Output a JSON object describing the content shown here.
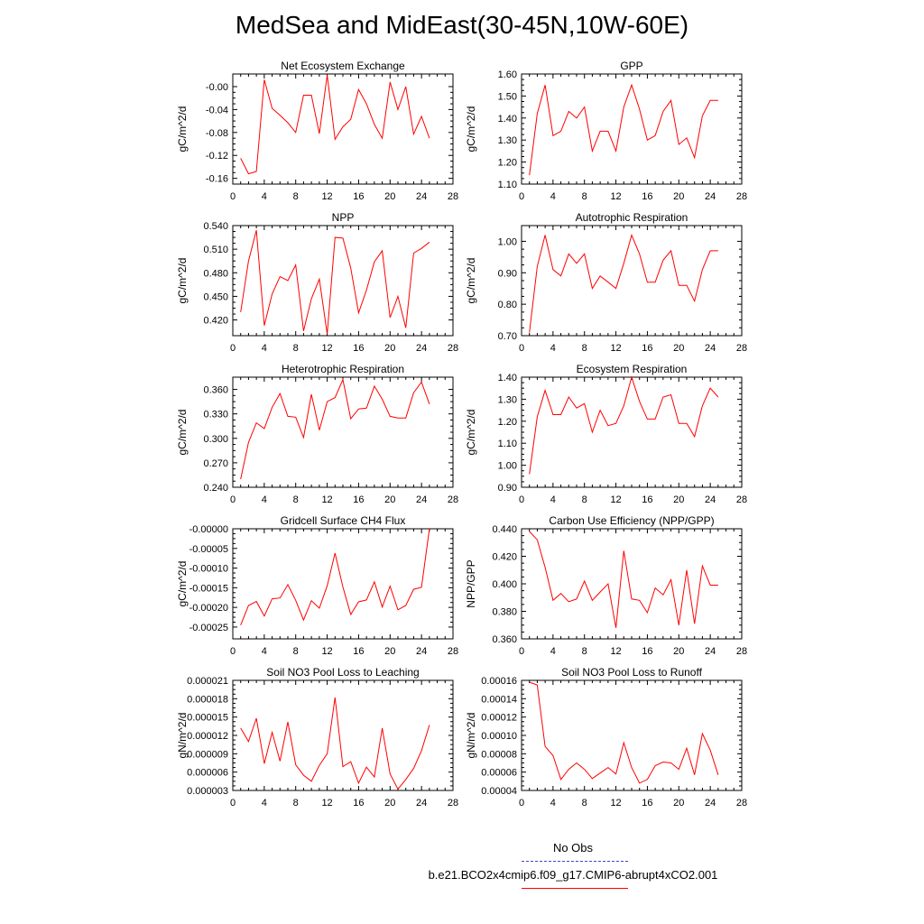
{
  "title": "MedSea and MidEast(30-45N,10W-60E)",
  "legend": {
    "obs_label": "No Obs",
    "case_label": "b.e21.BCO2x4cmip6.f09_g17.CMIP6-abrupt4xCO2.001",
    "obs_color": "#4444cc",
    "case_color": "#ff0000"
  },
  "chart_data": [
    {
      "type": "line",
      "title": "Net Ecosystem Exchange",
      "ylabel": "gC/m^2/d",
      "xlim": [
        0,
        28
      ],
      "xticks": [
        "0",
        "4",
        "8",
        "12",
        "16",
        "20",
        "24",
        "28"
      ],
      "ylim": [
        -0.17,
        0.022
      ],
      "yticks": [
        -0.16,
        -0.12,
        -0.08,
        -0.04,
        0.0
      ],
      "ytick_labels": [
        "-0.16",
        "-0.12",
        "-0.08",
        "-0.04",
        "-0.00"
      ],
      "x": [
        1,
        2,
        3,
        4,
        5,
        6,
        7,
        8,
        9,
        10,
        11,
        12,
        13,
        14,
        15,
        16,
        17,
        18,
        19,
        20,
        21,
        22,
        23,
        24,
        25
      ],
      "values": [
        -0.125,
        -0.152,
        -0.148,
        0.012,
        -0.038,
        -0.05,
        -0.063,
        -0.08,
        -0.015,
        -0.015,
        -0.082,
        0.02,
        -0.092,
        -0.07,
        -0.057,
        -0.005,
        -0.03,
        -0.066,
        -0.09,
        0.008,
        -0.04,
        0.0,
        -0.083,
        -0.052,
        -0.09
      ],
      "color": "#ff0000"
    },
    {
      "type": "line",
      "title": "GPP",
      "ylabel": "gC/m^2/d",
      "xlim": [
        0,
        28
      ],
      "xticks": [
        "0",
        "4",
        "8",
        "12",
        "16",
        "20",
        "24",
        "28"
      ],
      "ylim": [
        1.1,
        1.6
      ],
      "yticks": [
        1.1,
        1.2,
        1.3,
        1.4,
        1.5,
        1.6
      ],
      "ytick_labels": [
        "1.10",
        "1.20",
        "1.30",
        "1.40",
        "1.50",
        "1.60"
      ],
      "x": [
        1,
        2,
        3,
        4,
        5,
        6,
        7,
        8,
        9,
        10,
        11,
        12,
        13,
        14,
        15,
        16,
        17,
        18,
        19,
        20,
        21,
        22,
        23,
        24,
        25
      ],
      "values": [
        1.14,
        1.42,
        1.55,
        1.32,
        1.34,
        1.43,
        1.4,
        1.45,
        1.25,
        1.34,
        1.34,
        1.25,
        1.45,
        1.55,
        1.44,
        1.3,
        1.32,
        1.43,
        1.48,
        1.28,
        1.31,
        1.22,
        1.41,
        1.48,
        1.48
      ],
      "color": "#ff0000"
    },
    {
      "type": "line",
      "title": "NPP",
      "ylabel": "gC/m^2/d",
      "xlim": [
        0,
        28
      ],
      "xticks": [
        "0",
        "4",
        "8",
        "12",
        "16",
        "20",
        "24",
        "28"
      ],
      "ylim": [
        0.4,
        0.54
      ],
      "yticks": [
        0.42,
        0.45,
        0.48,
        0.51,
        0.54
      ],
      "ytick_labels": [
        "0.420",
        "0.450",
        "0.480",
        "0.510",
        "0.540"
      ],
      "x": [
        1,
        2,
        3,
        4,
        5,
        6,
        7,
        8,
        9,
        10,
        11,
        12,
        13,
        14,
        15,
        16,
        17,
        18,
        19,
        20,
        21,
        22,
        23,
        24,
        25
      ],
      "values": [
        0.43,
        0.495,
        0.534,
        0.413,
        0.453,
        0.475,
        0.47,
        0.49,
        0.406,
        0.447,
        0.472,
        0.402,
        0.525,
        0.524,
        0.486,
        0.429,
        0.458,
        0.494,
        0.508,
        0.423,
        0.45,
        0.41,
        0.505,
        0.511,
        0.519
      ],
      "color": "#ff0000"
    },
    {
      "type": "line",
      "title": "Autotrophic Respiration",
      "ylabel": "gC/m^2/d",
      "xlim": [
        0,
        28
      ],
      "xticks": [
        "0",
        "4",
        "8",
        "12",
        "16",
        "20",
        "24",
        "28"
      ],
      "ylim": [
        0.7,
        1.05
      ],
      "yticks": [
        0.7,
        0.8,
        0.9,
        1.0
      ],
      "ytick_labels": [
        "0.70",
        "0.80",
        "0.90",
        "1.00"
      ],
      "x": [
        1,
        2,
        3,
        4,
        5,
        6,
        7,
        8,
        9,
        10,
        11,
        12,
        13,
        14,
        15,
        16,
        17,
        18,
        19,
        20,
        21,
        22,
        23,
        24,
        25
      ],
      "values": [
        0.71,
        0.92,
        1.02,
        0.91,
        0.89,
        0.96,
        0.93,
        0.96,
        0.85,
        0.89,
        0.87,
        0.85,
        0.93,
        1.02,
        0.96,
        0.87,
        0.87,
        0.94,
        0.97,
        0.86,
        0.86,
        0.81,
        0.91,
        0.97,
        0.97
      ],
      "color": "#ff0000"
    },
    {
      "type": "line",
      "title": "Heterotrophic Respiration",
      "ylabel": "gC/m^2/d",
      "xlim": [
        0,
        28
      ],
      "xticks": [
        "0",
        "4",
        "8",
        "12",
        "16",
        "20",
        "24",
        "28"
      ],
      "ylim": [
        0.24,
        0.375
      ],
      "yticks": [
        0.24,
        0.27,
        0.3,
        0.33,
        0.36
      ],
      "ytick_labels": [
        "0.240",
        "0.270",
        "0.300",
        "0.330",
        "0.360"
      ],
      "x": [
        1,
        2,
        3,
        4,
        5,
        6,
        7,
        8,
        9,
        10,
        11,
        12,
        13,
        14,
        15,
        16,
        17,
        18,
        19,
        20,
        21,
        22,
        23,
        24,
        25
      ],
      "values": [
        0.25,
        0.295,
        0.319,
        0.312,
        0.338,
        0.355,
        0.327,
        0.326,
        0.301,
        0.354,
        0.31,
        0.345,
        0.35,
        0.372,
        0.324,
        0.336,
        0.337,
        0.364,
        0.348,
        0.327,
        0.325,
        0.325,
        0.356,
        0.369,
        0.342
      ],
      "color": "#ff0000"
    },
    {
      "type": "line",
      "title": "Ecosystem Respiration",
      "ylabel": "gC/m^2/d",
      "xlim": [
        0,
        28
      ],
      "xticks": [
        "0",
        "4",
        "8",
        "12",
        "16",
        "20",
        "24",
        "28"
      ],
      "ylim": [
        0.9,
        1.4
      ],
      "yticks": [
        0.9,
        1.0,
        1.1,
        1.2,
        1.3,
        1.4
      ],
      "ytick_labels": [
        "0.90",
        "1.00",
        "1.10",
        "1.20",
        "1.30",
        "1.40"
      ],
      "x": [
        1,
        2,
        3,
        4,
        5,
        6,
        7,
        8,
        9,
        10,
        11,
        12,
        13,
        14,
        15,
        16,
        17,
        18,
        19,
        20,
        21,
        22,
        23,
        24,
        25
      ],
      "values": [
        0.96,
        1.22,
        1.34,
        1.23,
        1.23,
        1.31,
        1.26,
        1.28,
        1.15,
        1.25,
        1.18,
        1.19,
        1.27,
        1.4,
        1.29,
        1.21,
        1.21,
        1.31,
        1.32,
        1.19,
        1.19,
        1.13,
        1.27,
        1.35,
        1.31
      ],
      "color": "#ff0000"
    },
    {
      "type": "line",
      "title": "Gridcell Surface CH4 Flux",
      "ylabel": "gC/m^2/d",
      "xlim": [
        0,
        28
      ],
      "xticks": [
        "0",
        "4",
        "8",
        "12",
        "16",
        "20",
        "24",
        "28"
      ],
      "ylim": [
        -0.00028,
        0.0
      ],
      "yticks": [
        -0.00025,
        -0.0002,
        -0.00015,
        -0.0001,
        -5e-05,
        0.0
      ],
      "ytick_labels": [
        "-0.00025",
        "-0.00020",
        "-0.00015",
        "-0.00010",
        "-0.00005",
        "-0.00000"
      ],
      "x": [
        1,
        2,
        3,
        4,
        5,
        6,
        7,
        8,
        9,
        10,
        11,
        12,
        13,
        14,
        15,
        16,
        17,
        18,
        19,
        20,
        21,
        22,
        23,
        24,
        25
      ],
      "values": [
        -0.000245,
        -0.000195,
        -0.000185,
        -0.000222,
        -0.000178,
        -0.000176,
        -0.000142,
        -0.000182,
        -0.000232,
        -0.000183,
        -0.000202,
        -0.000145,
        -6.2e-05,
        -0.000148,
        -0.000218,
        -0.000186,
        -0.000181,
        -0.000135,
        -0.000199,
        -0.000146,
        -0.000206,
        -0.000195,
        -0.000154,
        -0.000149,
        0.0
      ],
      "color": "#ff0000"
    },
    {
      "type": "line",
      "title": "Carbon Use Efficiency (NPP/GPP)",
      "ylabel": "NPP/GPP",
      "xlim": [
        0,
        28
      ],
      "xticks": [
        "0",
        "4",
        "8",
        "12",
        "16",
        "20",
        "24",
        "28"
      ],
      "ylim": [
        0.36,
        0.44
      ],
      "yticks": [
        0.36,
        0.38,
        0.4,
        0.42,
        0.44
      ],
      "ytick_labels": [
        "0.360",
        "0.380",
        "0.400",
        "0.420",
        "0.440"
      ],
      "x": [
        1,
        2,
        3,
        4,
        5,
        6,
        7,
        8,
        9,
        10,
        11,
        12,
        13,
        14,
        15,
        16,
        17,
        18,
        19,
        20,
        21,
        22,
        23,
        24,
        25
      ],
      "values": [
        0.438,
        0.432,
        0.412,
        0.388,
        0.393,
        0.387,
        0.389,
        0.402,
        0.388,
        0.394,
        0.4,
        0.368,
        0.424,
        0.389,
        0.388,
        0.379,
        0.397,
        0.392,
        0.403,
        0.37,
        0.41,
        0.371,
        0.413,
        0.399,
        0.399
      ],
      "color": "#ff0000"
    },
    {
      "type": "line",
      "title": "Soil NO3 Pool Loss to Leaching",
      "ylabel": "gN/m^2/d",
      "xlim": [
        0,
        28
      ],
      "xticks": [
        "0",
        "4",
        "8",
        "12",
        "16",
        "20",
        "24",
        "28"
      ],
      "ylim": [
        3e-06,
        2.1e-05
      ],
      "yticks": [
        3e-06,
        6e-06,
        9e-06,
        1.2e-05,
        1.5e-05,
        1.8e-05,
        2.1e-05
      ],
      "ytick_labels": [
        "0.000003",
        "0.000006",
        "0.000009",
        "0.000012",
        "0.000015",
        "0.000018",
        "0.000021"
      ],
      "x": [
        1,
        2,
        3,
        4,
        5,
        6,
        7,
        8,
        9,
        10,
        11,
        12,
        13,
        14,
        15,
        16,
        17,
        18,
        19,
        20,
        21,
        22,
        23,
        24,
        25
      ],
      "values": [
        1.32e-05,
        1.1e-05,
        1.48e-05,
        7.4e-06,
        1.25e-05,
        7.8e-06,
        1.42e-05,
        7.2e-06,
        5.5e-06,
        4.5e-06,
        7.1e-06,
        9e-06,
        1.82e-05,
        6.9e-06,
        7.7e-06,
        4.2e-06,
        6.8e-06,
        5.2e-06,
        1.32e-05,
        5.7e-06,
        3.2e-06,
        4.8e-06,
        6.6e-06,
        9.5e-06,
        1.37e-05
      ],
      "color": "#ff0000"
    },
    {
      "type": "line",
      "title": "Soil NO3 Pool Loss to Runoff",
      "ylabel": "gN/m^2/d",
      "xlim": [
        0,
        28
      ],
      "xticks": [
        "0",
        "4",
        "8",
        "12",
        "16",
        "20",
        "24",
        "28"
      ],
      "ylim": [
        4e-05,
        0.00016
      ],
      "yticks": [
        4e-05,
        6e-05,
        8e-05,
        0.0001,
        0.00012,
        0.00014,
        0.00016
      ],
      "ytick_labels": [
        "0.00004",
        "0.00006",
        "0.00008",
        "0.00010",
        "0.00012",
        "0.00014",
        "0.00016"
      ],
      "x": [
        1,
        2,
        3,
        4,
        5,
        6,
        7,
        8,
        9,
        10,
        11,
        12,
        13,
        14,
        15,
        16,
        17,
        18,
        19,
        20,
        21,
        22,
        23,
        24,
        25
      ],
      "values": [
        0.000158,
        0.000155,
        8.8e-05,
        7.8e-05,
        5.2e-05,
        6.3e-05,
        7e-05,
        6.3e-05,
        5.3e-05,
        5.9e-05,
        6.5e-05,
        5.8e-05,
        9.2e-05,
        6.5e-05,
        4.8e-05,
        5.2e-05,
        6.7e-05,
        7.1e-05,
        7e-05,
        6.3e-05,
        8.6e-05,
        5.7e-05,
        0.000102,
        8.4e-05,
        5.7e-05
      ],
      "color": "#ff0000"
    }
  ]
}
